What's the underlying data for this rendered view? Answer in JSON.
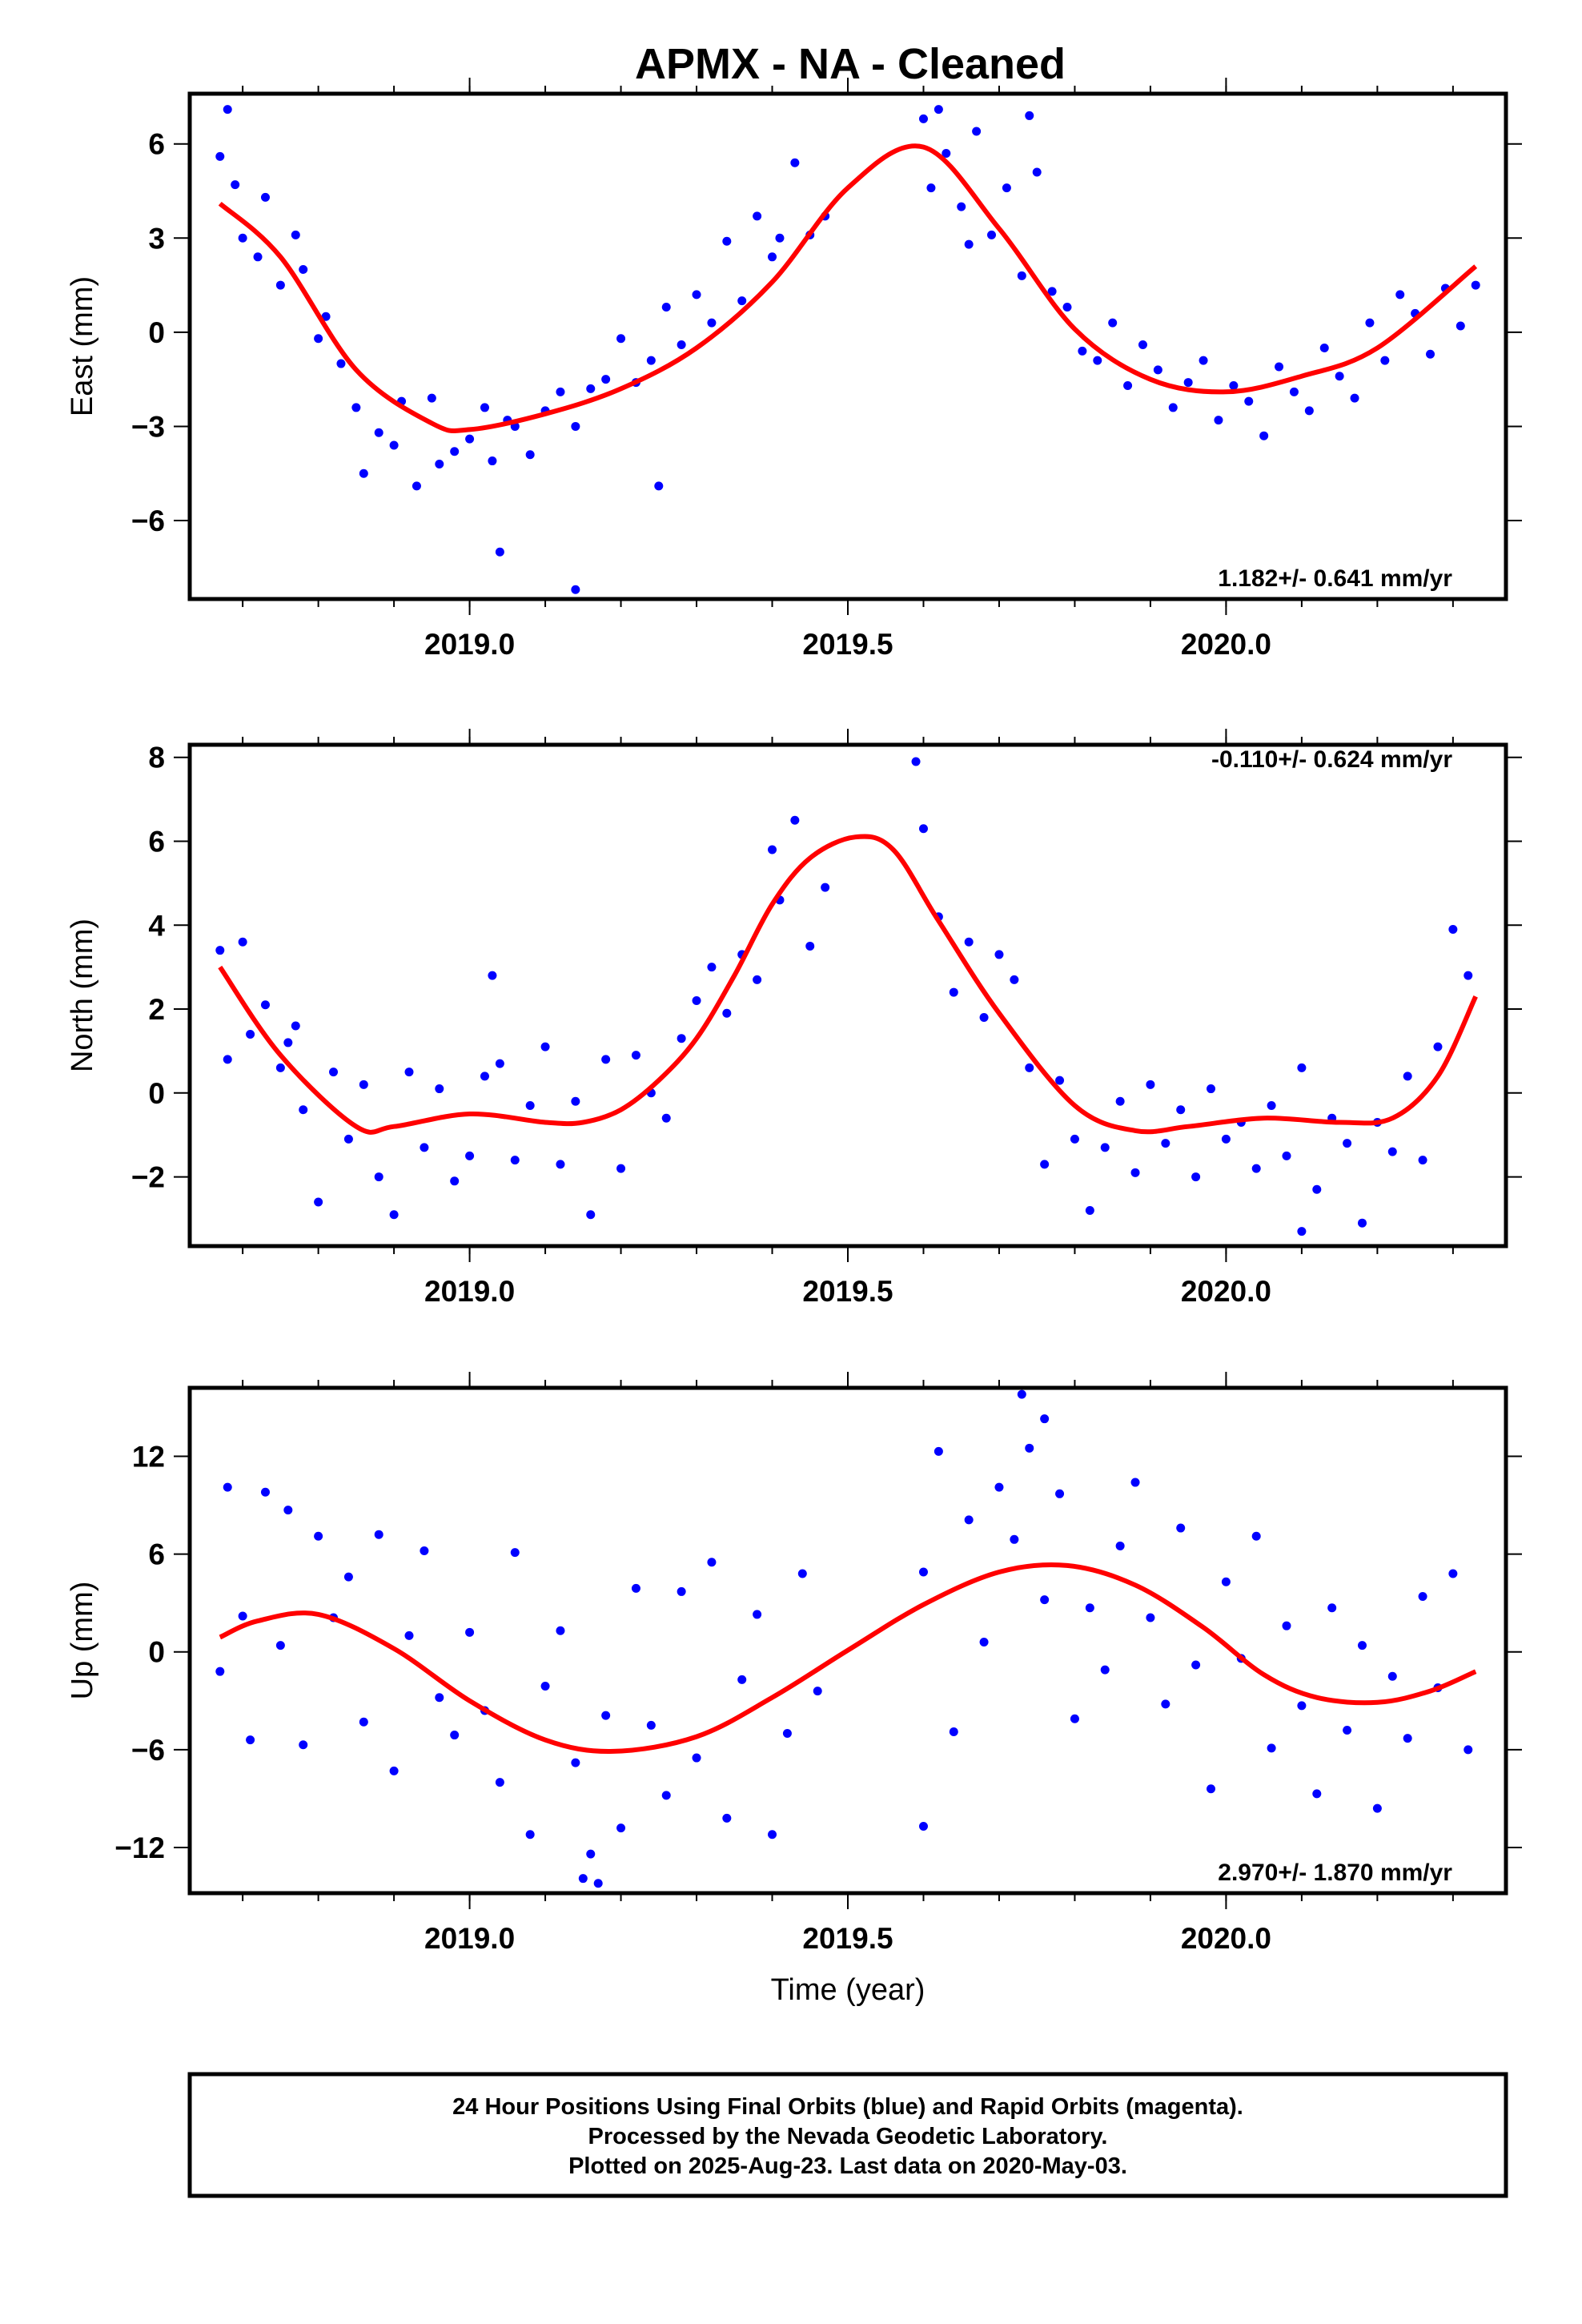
{
  "title": "APMX  - NA - Cleaned",
  "colors": {
    "points": "#0000ff",
    "fit": "#ff0000",
    "frame": "#000000"
  },
  "footer": {
    "line1": "24 Hour Positions Using Final Orbits (blue) and Rapid Orbits (magenta).",
    "line2": "Processed by the Nevada Geodetic Laboratory.",
    "line3": "Plotted on 2025-Aug-23. Last data on 2020-May-03."
  },
  "chart_data": [
    {
      "type": "scatter",
      "component": "east",
      "ylabel": "East (mm)",
      "xlabel": "",
      "rate_label": "1.182+/- 0.641 mm/yr",
      "rate_position": "bottom-right",
      "xlim": [
        2018.63,
        2020.37
      ],
      "ylim": [
        -8.5,
        7.6
      ],
      "xticks": [
        2019.0,
        2019.5,
        2020.0
      ],
      "xtick_labels": [
        "2019.0",
        "2019.5",
        "2020.0"
      ],
      "yticks": [
        -6,
        -3,
        0,
        3,
        6
      ],
      "ytick_labels": [
        "−6",
        "−3",
        "0",
        "3",
        "6"
      ],
      "fit_x": [
        2018.67,
        2018.75,
        2018.85,
        2018.95,
        2019.0,
        2019.1,
        2019.2,
        2019.3,
        2019.4,
        2019.5,
        2019.6,
        2019.7,
        2019.8,
        2019.9,
        2020.0,
        2020.1,
        2020.2,
        2020.33
      ],
      "fit_y": [
        4.1,
        2.4,
        -1.2,
        -2.9,
        -3.1,
        -2.6,
        -1.8,
        -0.5,
        1.6,
        4.6,
        5.9,
        3.3,
        0.1,
        -1.5,
        -1.9,
        -1.4,
        -0.5,
        2.1
      ],
      "points": {
        "x": [
          2018.67,
          2018.68,
          2018.69,
          2018.7,
          2018.72,
          2018.73,
          2018.75,
          2018.77,
          2018.78,
          2018.8,
          2018.81,
          2018.83,
          2018.85,
          2018.86,
          2018.88,
          2018.9,
          2018.91,
          2018.93,
          2018.95,
          2018.96,
          2018.98,
          2019.0,
          2019.02,
          2019.03,
          2019.05,
          2019.06,
          2019.08,
          2019.1,
          2019.12,
          2019.14,
          2019.16,
          2019.18,
          2019.2,
          2019.22,
          2019.24,
          2019.26,
          2019.28,
          2019.3,
          2019.32,
          2019.34,
          2019.36,
          2019.38,
          2019.4,
          2019.41,
          2019.43,
          2019.45,
          2019.47,
          2019.6,
          2019.61,
          2019.63,
          2019.65,
          2019.67,
          2019.69,
          2019.71,
          2019.73,
          2019.75,
          2019.77,
          2019.79,
          2019.81,
          2019.83,
          2019.85,
          2019.87,
          2019.89,
          2019.91,
          2019.93,
          2019.95,
          2019.97,
          2019.99,
          2020.01,
          2020.03,
          2020.05,
          2020.07,
          2020.09,
          2020.11,
          2020.13,
          2020.15,
          2020.17,
          2020.19,
          2020.21,
          2020.23,
          2020.25,
          2020.27,
          2020.29,
          2020.31,
          2020.33,
          2019.04,
          2019.14,
          2019.25,
          2019.62,
          2019.66,
          2019.74
        ],
        "y": [
          5.6,
          7.1,
          4.7,
          3.0,
          2.4,
          4.3,
          1.5,
          3.1,
          2.0,
          -0.2,
          0.5,
          -1.0,
          -2.4,
          -4.5,
          -3.2,
          -3.6,
          -2.2,
          -4.9,
          -2.1,
          -4.2,
          -3.8,
          -3.4,
          -2.4,
          -4.1,
          -2.8,
          -3.0,
          -3.9,
          -2.5,
          -1.9,
          -3.0,
          -1.8,
          -1.5,
          -0.2,
          -1.6,
          -0.9,
          0.8,
          -0.4,
          1.2,
          0.3,
          2.9,
          1.0,
          3.7,
          2.4,
          3.0,
          5.4,
          3.1,
          3.7,
          6.8,
          4.6,
          5.7,
          4.0,
          6.4,
          3.1,
          4.6,
          1.8,
          5.1,
          1.3,
          0.8,
          -0.6,
          -0.9,
          0.3,
          -1.7,
          -0.4,
          -1.2,
          -2.4,
          -1.6,
          -0.9,
          -2.8,
          -1.7,
          -2.2,
          -3.3,
          -1.1,
          -1.9,
          -2.5,
          -0.5,
          -1.4,
          -2.1,
          0.3,
          -0.9,
          1.2,
          0.6,
          -0.7,
          1.4,
          0.2,
          1.5,
          -7.0,
          -8.2,
          -4.9,
          7.1,
          2.8,
          6.9
        ]
      }
    },
    {
      "type": "scatter",
      "component": "north",
      "ylabel": "North (mm)",
      "xlabel": "",
      "rate_label": "-0.110+/- 0.624 mm/yr",
      "rate_position": "top-right",
      "xlim": [
        2018.63,
        2020.37
      ],
      "ylim": [
        -3.65,
        8.3
      ],
      "xticks": [
        2019.0,
        2019.5,
        2020.0
      ],
      "xtick_labels": [
        "2019.0",
        "2019.5",
        "2020.0"
      ],
      "yticks": [
        -2,
        0,
        2,
        4,
        6,
        8
      ],
      "ytick_labels": [
        "−2",
        "0",
        "2",
        "4",
        "6",
        "8"
      ],
      "fit_x": [
        2018.67,
        2018.75,
        2018.85,
        2018.9,
        2019.0,
        2019.1,
        2019.15,
        2019.2,
        2019.25,
        2019.3,
        2019.35,
        2019.4,
        2019.45,
        2019.51,
        2019.56,
        2019.62,
        2019.7,
        2019.8,
        2019.88,
        2019.95,
        2020.05,
        2020.15,
        2020.22,
        2020.28,
        2020.33
      ],
      "fit_y": [
        3.0,
        0.9,
        -0.8,
        -0.8,
        -0.5,
        -0.7,
        -0.7,
        -0.4,
        0.3,
        1.3,
        2.8,
        4.5,
        5.6,
        6.1,
        5.8,
        4.1,
        1.9,
        -0.3,
        -0.9,
        -0.8,
        -0.6,
        -0.7,
        -0.6,
        0.4,
        2.3
      ],
      "points": {
        "x": [
          2018.67,
          2018.68,
          2018.7,
          2018.71,
          2018.73,
          2018.75,
          2018.77,
          2018.78,
          2018.8,
          2018.82,
          2018.84,
          2018.86,
          2018.88,
          2018.9,
          2018.92,
          2018.94,
          2018.96,
          2018.98,
          2019.0,
          2019.02,
          2019.04,
          2019.06,
          2019.08,
          2019.1,
          2019.12,
          2019.14,
          2019.16,
          2019.18,
          2019.2,
          2019.22,
          2019.24,
          2019.26,
          2019.28,
          2019.3,
          2019.32,
          2019.34,
          2019.36,
          2019.38,
          2019.4,
          2019.41,
          2019.43,
          2019.45,
          2019.47,
          2019.6,
          2019.62,
          2019.64,
          2019.66,
          2019.68,
          2019.7,
          2019.72,
          2019.74,
          2019.76,
          2019.78,
          2019.8,
          2019.82,
          2019.84,
          2019.86,
          2019.88,
          2019.9,
          2019.92,
          2019.94,
          2019.96,
          2019.98,
          2020.0,
          2020.02,
          2020.04,
          2020.06,
          2020.08,
          2020.1,
          2020.12,
          2020.14,
          2020.16,
          2020.18,
          2020.2,
          2020.22,
          2020.24,
          2020.26,
          2020.28,
          2020.3,
          2020.32,
          2019.59,
          2019.03,
          2018.76,
          2020.1
        ],
        "y": [
          3.4,
          0.8,
          3.6,
          1.4,
          2.1,
          0.6,
          1.6,
          -0.4,
          -2.6,
          0.5,
          -1.1,
          0.2,
          -2.0,
          -2.9,
          0.5,
          -1.3,
          0.1,
          -2.1,
          -1.5,
          0.4,
          0.7,
          -1.6,
          -0.3,
          1.1,
          -1.7,
          -0.2,
          -2.9,
          0.8,
          -1.8,
          0.9,
          0.0,
          -0.6,
          1.3,
          2.2,
          3.0,
          1.9,
          3.3,
          2.7,
          5.8,
          4.6,
          6.5,
          3.5,
          4.9,
          6.3,
          4.2,
          2.4,
          3.6,
          1.8,
          3.3,
          2.7,
          0.6,
          -1.7,
          0.3,
          -1.1,
          -2.8,
          -1.3,
          -0.2,
          -1.9,
          0.2,
          -1.2,
          -0.4,
          -2.0,
          0.1,
          -1.1,
          -0.7,
          -1.8,
          -0.3,
          -1.5,
          0.6,
          -2.3,
          -0.6,
          -1.2,
          -3.1,
          -0.7,
          -1.4,
          0.4,
          -1.6,
          1.1,
          3.9,
          2.8,
          7.9,
          2.8,
          1.2,
          -3.3
        ]
      }
    },
    {
      "type": "scatter",
      "component": "up",
      "ylabel": "Up (mm)",
      "xlabel": "Time (year)",
      "rate_label": "2.970+/- 1.870 mm/yr",
      "rate_position": "bottom-right",
      "xlim": [
        2018.63,
        2020.37
      ],
      "ylim": [
        -14.8,
        16.2
      ],
      "xticks": [
        2019.0,
        2019.5,
        2020.0
      ],
      "xtick_labels": [
        "2019.0",
        "2019.5",
        "2020.0"
      ],
      "yticks": [
        -12,
        -6,
        0,
        6,
        12
      ],
      "ytick_labels": [
        "−12",
        "−6",
        "0",
        "6",
        "12"
      ],
      "fit_x": [
        2018.67,
        2018.72,
        2018.8,
        2018.9,
        2019.0,
        2019.1,
        2019.19,
        2019.3,
        2019.4,
        2019.5,
        2019.6,
        2019.7,
        2019.79,
        2019.88,
        2019.97,
        2020.05,
        2020.12,
        2020.2,
        2020.27,
        2020.33
      ],
      "fit_y": [
        0.9,
        1.9,
        2.3,
        0.2,
        -3.0,
        -5.4,
        -6.1,
        -5.2,
        -2.8,
        0.1,
        2.9,
        4.9,
        5.3,
        4.1,
        1.5,
        -1.4,
        -2.8,
        -3.1,
        -2.4,
        -1.2
      ],
      "points": {
        "x": [
          2018.67,
          2018.68,
          2018.7,
          2018.71,
          2018.73,
          2018.75,
          2018.76,
          2018.78,
          2018.8,
          2018.82,
          2018.84,
          2018.86,
          2018.88,
          2018.9,
          2018.92,
          2018.94,
          2018.96,
          2018.98,
          2019.0,
          2019.02,
          2019.04,
          2019.06,
          2019.08,
          2019.1,
          2019.12,
          2019.14,
          2019.16,
          2019.18,
          2019.2,
          2019.22,
          2019.24,
          2019.26,
          2019.28,
          2019.3,
          2019.32,
          2019.34,
          2019.36,
          2019.38,
          2019.4,
          2019.42,
          2019.44,
          2019.46,
          2019.6,
          2019.62,
          2019.64,
          2019.66,
          2019.68,
          2019.7,
          2019.72,
          2019.74,
          2019.76,
          2019.78,
          2019.8,
          2019.82,
          2019.84,
          2019.86,
          2019.88,
          2019.9,
          2019.92,
          2019.94,
          2019.96,
          2019.98,
          2020.0,
          2020.02,
          2020.04,
          2020.06,
          2020.08,
          2020.1,
          2020.12,
          2020.14,
          2020.16,
          2020.18,
          2020.2,
          2020.22,
          2020.24,
          2020.26,
          2020.28,
          2020.3,
          2020.32,
          2019.73,
          2019.76,
          2019.15,
          2019.17,
          2019.6
        ],
        "y": [
          -1.2,
          10.1,
          2.2,
          -5.4,
          9.8,
          0.4,
          8.7,
          -5.7,
          7.1,
          2.1,
          4.6,
          -4.3,
          7.2,
          -7.3,
          1.0,
          6.2,
          -2.8,
          -5.1,
          1.2,
          -3.6,
          -8.0,
          6.1,
          -11.2,
          -2.1,
          1.3,
          -6.8,
          -12.4,
          -3.9,
          -10.8,
          3.9,
          -4.5,
          -8.8,
          3.7,
          -6.5,
          5.5,
          -10.2,
          -1.7,
          2.3,
          -11.2,
          -5.0,
          4.8,
          -2.4,
          4.9,
          12.3,
          -4.9,
          8.1,
          0.6,
          10.1,
          6.9,
          12.5,
          3.2,
          9.7,
          -4.1,
          2.7,
          -1.1,
          6.5,
          10.4,
          2.1,
          -3.2,
          7.6,
          -0.8,
          -8.4,
          4.3,
          -0.4,
          7.1,
          -5.9,
          1.6,
          -3.3,
          -8.7,
          2.7,
          -4.8,
          0.4,
          -9.6,
          -1.5,
          -5.3,
          3.4,
          -2.2,
          4.8,
          -6.0,
          15.8,
          14.3,
          -13.9,
          -14.2,
          -10.7
        ]
      }
    }
  ]
}
